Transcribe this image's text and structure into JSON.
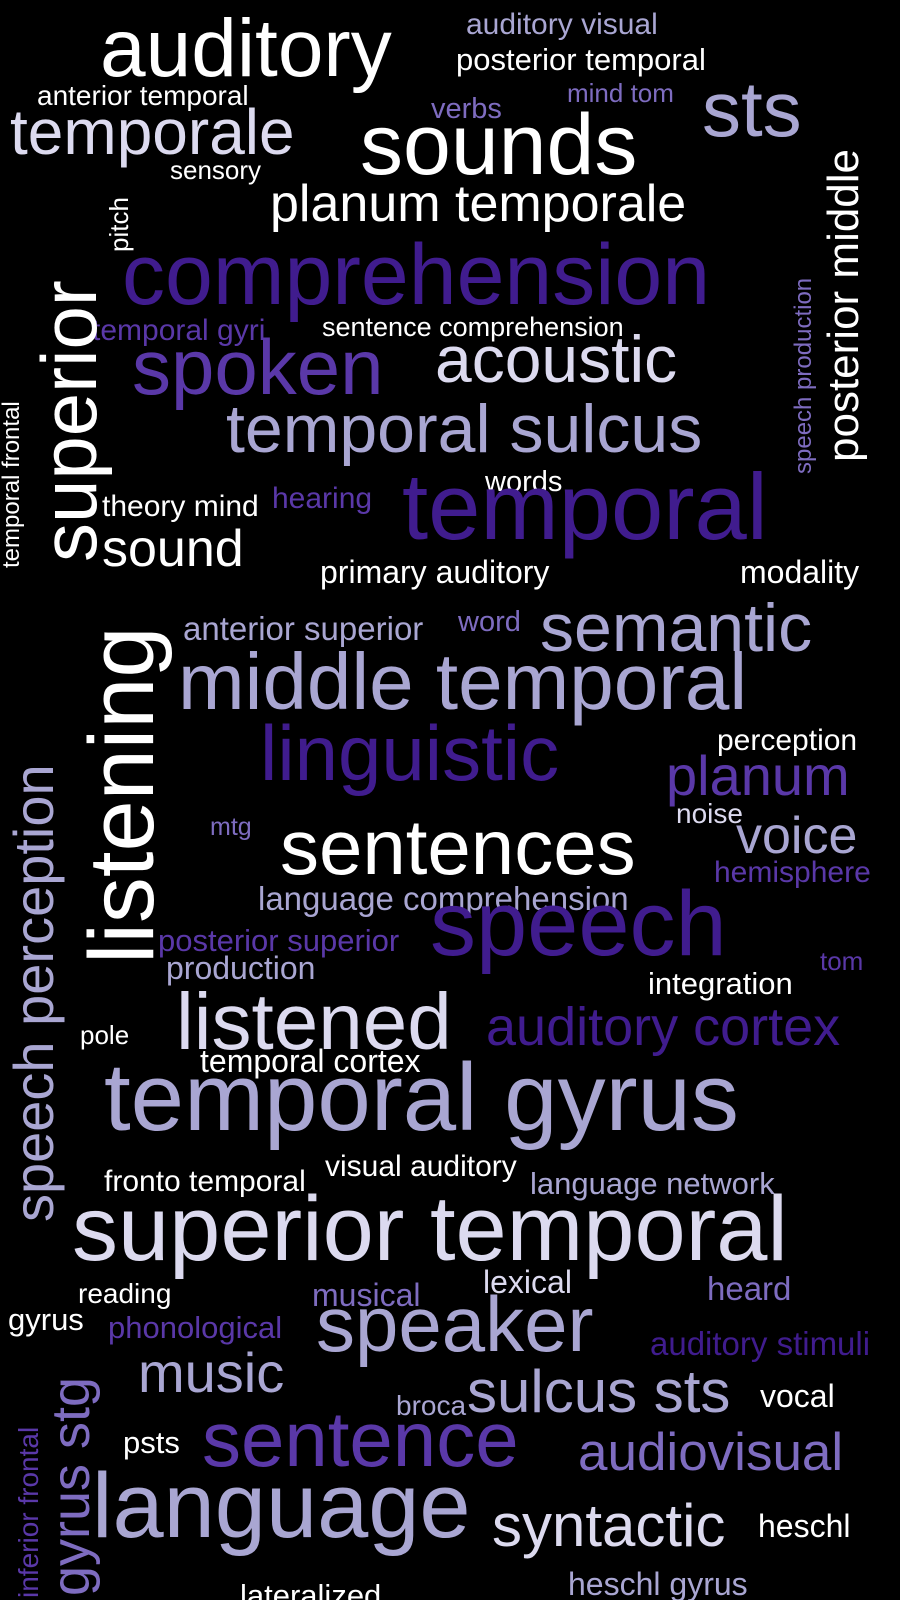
{
  "palette": {
    "white": "#ffffff",
    "pale": "#dcdaef",
    "lavender": "#a9a6d2",
    "violet": "#7e6cc0",
    "purple": "#5a38a8",
    "deep": "#401c8e"
  },
  "words": [
    {
      "text": "auditory",
      "color": "white"
    },
    {
      "text": "auditory visual",
      "color": "lavender"
    },
    {
      "text": "posterior temporal",
      "color": "white"
    },
    {
      "text": "anterior temporal",
      "color": "white"
    },
    {
      "text": "temporale",
      "color": "pale"
    },
    {
      "text": "verbs",
      "color": "violet"
    },
    {
      "text": "mind tom",
      "color": "violet"
    },
    {
      "text": "sts",
      "color": "lavender"
    },
    {
      "text": "sounds",
      "color": "white"
    },
    {
      "text": "sensory",
      "color": "white"
    },
    {
      "text": "planum temporale",
      "color": "white"
    },
    {
      "text": "posterior middle",
      "color": "white"
    },
    {
      "text": "pitch",
      "color": "white"
    },
    {
      "text": "comprehension",
      "color": "deep"
    },
    {
      "text": "speech production",
      "color": "violet"
    },
    {
      "text": "temporal gyri",
      "color": "purple"
    },
    {
      "text": "sentence comprehension",
      "color": "white"
    },
    {
      "text": "superior",
      "color": "white"
    },
    {
      "text": "temporal frontal",
      "color": "white"
    },
    {
      "text": "spoken",
      "color": "purple"
    },
    {
      "text": "acoustic",
      "color": "pale"
    },
    {
      "text": "temporal sulcus",
      "color": "lavender"
    },
    {
      "text": "words",
      "color": "white"
    },
    {
      "text": "theory mind",
      "color": "white"
    },
    {
      "text": "hearing",
      "color": "purple"
    },
    {
      "text": "temporal",
      "color": "deep"
    },
    {
      "text": "sound",
      "color": "white"
    },
    {
      "text": "primary auditory",
      "color": "white"
    },
    {
      "text": "modality",
      "color": "white"
    },
    {
      "text": "listening",
      "color": "white"
    },
    {
      "text": "speech perception",
      "color": "lavender"
    },
    {
      "text": "anterior superior",
      "color": "lavender"
    },
    {
      "text": "word",
      "color": "violet"
    },
    {
      "text": "semantic",
      "color": "lavender"
    },
    {
      "text": "middle temporal",
      "color": "lavender"
    },
    {
      "text": "perception",
      "color": "white"
    },
    {
      "text": "linguistic",
      "color": "deep"
    },
    {
      "text": "planum",
      "color": "purple"
    },
    {
      "text": "mtg",
      "color": "violet"
    },
    {
      "text": "noise",
      "color": "pale"
    },
    {
      "text": "sentences",
      "color": "white"
    },
    {
      "text": "voice",
      "color": "lavender"
    },
    {
      "text": "hemisphere",
      "color": "purple"
    },
    {
      "text": "language comprehension",
      "color": "lavender"
    },
    {
      "text": "posterior superior",
      "color": "purple"
    },
    {
      "text": "speech",
      "color": "deep"
    },
    {
      "text": "production",
      "color": "lavender"
    },
    {
      "text": "tom",
      "color": "purple"
    },
    {
      "text": "integration",
      "color": "white"
    },
    {
      "text": "pole",
      "color": "white"
    },
    {
      "text": "listened",
      "color": "pale"
    },
    {
      "text": "auditory cortex",
      "color": "deep"
    },
    {
      "text": "temporal cortex",
      "color": "white"
    },
    {
      "text": "temporal gyrus",
      "color": "lavender"
    },
    {
      "text": "fronto temporal",
      "color": "white"
    },
    {
      "text": "visual auditory",
      "color": "white"
    },
    {
      "text": "language network",
      "color": "lavender"
    },
    {
      "text": "superior temporal",
      "color": "pale"
    },
    {
      "text": "reading",
      "color": "white"
    },
    {
      "text": "lexical",
      "color": "pale"
    },
    {
      "text": "heard",
      "color": "violet"
    },
    {
      "text": "gyrus",
      "color": "white"
    },
    {
      "text": "musical",
      "color": "violet"
    },
    {
      "text": "phonological",
      "color": "purple"
    },
    {
      "text": "speaker",
      "color": "lavender"
    },
    {
      "text": "auditory stimuli",
      "color": "deep"
    },
    {
      "text": "gyrus stg",
      "color": "violet"
    },
    {
      "text": "inferior frontal",
      "color": "purple"
    },
    {
      "text": "music",
      "color": "lavender"
    },
    {
      "text": "broca",
      "color": "lavender"
    },
    {
      "text": "sulcus sts",
      "color": "lavender"
    },
    {
      "text": "vocal",
      "color": "white"
    },
    {
      "text": "psts",
      "color": "white"
    },
    {
      "text": "sentence",
      "color": "purple"
    },
    {
      "text": "audiovisual",
      "color": "violet"
    },
    {
      "text": "language",
      "color": "lavender"
    },
    {
      "text": "syntactic",
      "color": "pale"
    },
    {
      "text": "heschl",
      "color": "white"
    },
    {
      "text": "heschl gyrus",
      "color": "lavender"
    },
    {
      "text": "lateralized",
      "color": "white"
    }
  ]
}
